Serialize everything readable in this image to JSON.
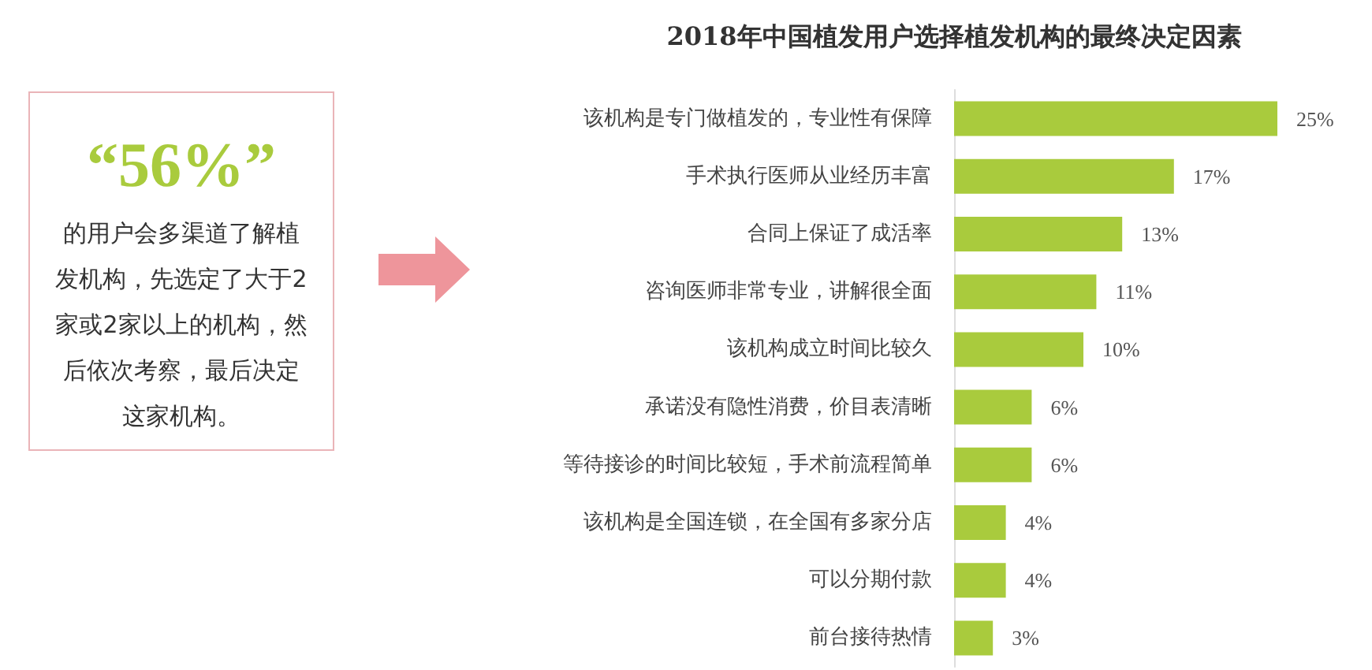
{
  "chart_data": {
    "type": "bar",
    "orientation": "horizontal",
    "title": "2018年中国植发用户选择植发机构的最终决定因素",
    "categories": [
      "该机构是专门做植发的，专业性有保障",
      "手术执行医师从业经历丰富",
      "合同上保证了成活率",
      "咨询医师非常专业，讲解很全面",
      "该机构成立时间比较久",
      "承诺没有隐性消费，价目表清晰",
      "等待接诊的时间比较短，手术前流程简单",
      "该机构是全国连锁，在全国有多家分店",
      "可以分期付款",
      "前台接待热情"
    ],
    "values": [
      25,
      17,
      13,
      11,
      10,
      6,
      6,
      4,
      4,
      3
    ],
    "value_labels": [
      "25%",
      "17%",
      "13%",
      "11%",
      "10%",
      "6%",
      "6%",
      "4%",
      "4%",
      "3%"
    ],
    "color": "#a9cb3d",
    "annotations": [
      "“56%”",
      "的用户会多渠道了解植发机构，先选定了大于2家或2家以上的机构，然后依次考察，最后决定这家机构。"
    ]
  }
}
